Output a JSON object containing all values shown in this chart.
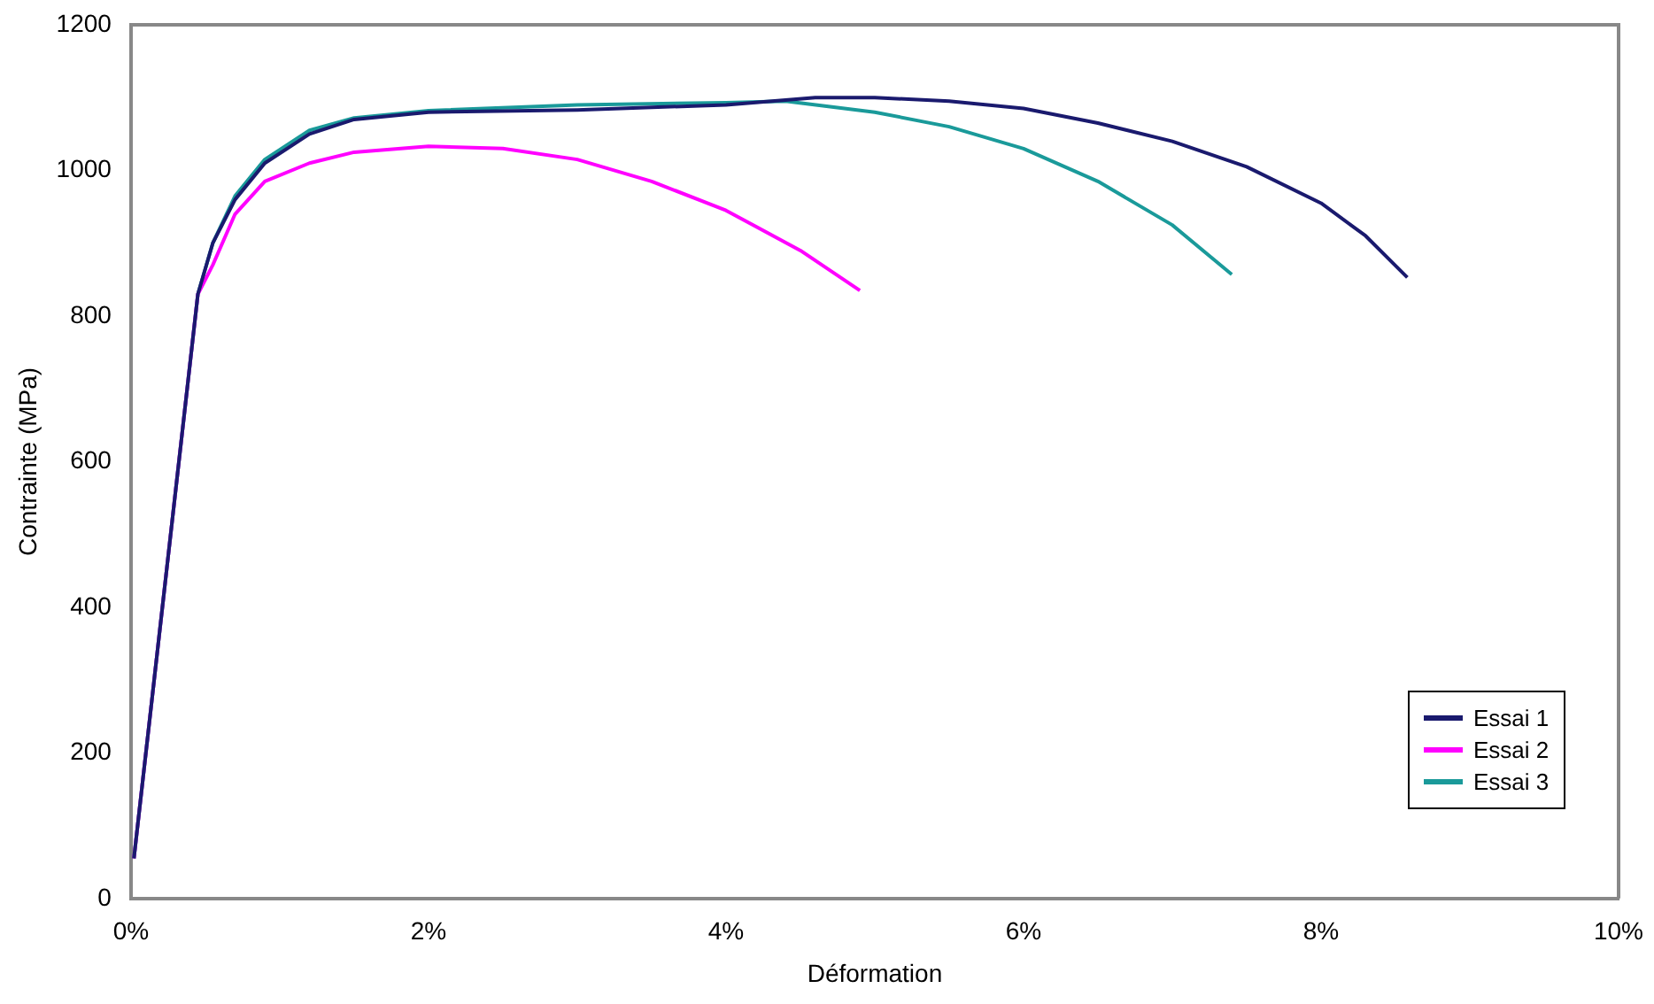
{
  "chart_data": {
    "type": "line",
    "xlabel": "Déformation",
    "ylabel": "Contrainte (MPa)",
    "xlim": [
      0,
      10
    ],
    "xticks": [
      {
        "value": 0,
        "label": "0%"
      },
      {
        "value": 2,
        "label": "2%"
      },
      {
        "value": 4,
        "label": "4%"
      },
      {
        "value": 6,
        "label": "6%"
      },
      {
        "value": 8,
        "label": "8%"
      },
      {
        "value": 10,
        "label": "10%"
      }
    ],
    "ylim": [
      0,
      1200
    ],
    "yticks": [
      0,
      200,
      400,
      600,
      800,
      1000,
      1200
    ],
    "grid": false,
    "legend": "bottom right",
    "marker": "none",
    "line_style": "solid",
    "series": [
      {
        "name": "Essai 1",
        "color": "#1a1a6e",
        "x": [
          0.02,
          0.45,
          0.55,
          0.7,
          0.9,
          1.2,
          1.5,
          2,
          3,
          4,
          4.6,
          5,
          5.5,
          6,
          6.5,
          7,
          7.5,
          8,
          8.3,
          8.58
        ],
        "values": [
          55,
          830,
          900,
          960,
          1010,
          1050,
          1070,
          1080,
          1083,
          1090,
          1100,
          1100,
          1095,
          1085,
          1065,
          1040,
          1005,
          955,
          910,
          853
        ]
      },
      {
        "name": "Essai 2",
        "color": "#ff00ff",
        "x": [
          0.02,
          0.45,
          0.55,
          0.7,
          0.9,
          1.2,
          1.5,
          2,
          2.5,
          3,
          3.5,
          4,
          4.5,
          4.9
        ],
        "values": [
          55,
          830,
          870,
          940,
          985,
          1010,
          1025,
          1033,
          1030,
          1015,
          985,
          945,
          890,
          835
        ]
      },
      {
        "name": "Essai 3",
        "color": "#1a9a9a",
        "x": [
          0.02,
          0.45,
          0.55,
          0.7,
          0.9,
          1.2,
          1.5,
          2,
          3,
          4,
          4.4,
          5,
          5.5,
          6,
          6.5,
          7,
          7.4
        ],
        "values": [
          55,
          830,
          900,
          965,
          1015,
          1055,
          1072,
          1082,
          1090,
          1093,
          1095,
          1080,
          1060,
          1030,
          985,
          925,
          857
        ]
      }
    ]
  }
}
